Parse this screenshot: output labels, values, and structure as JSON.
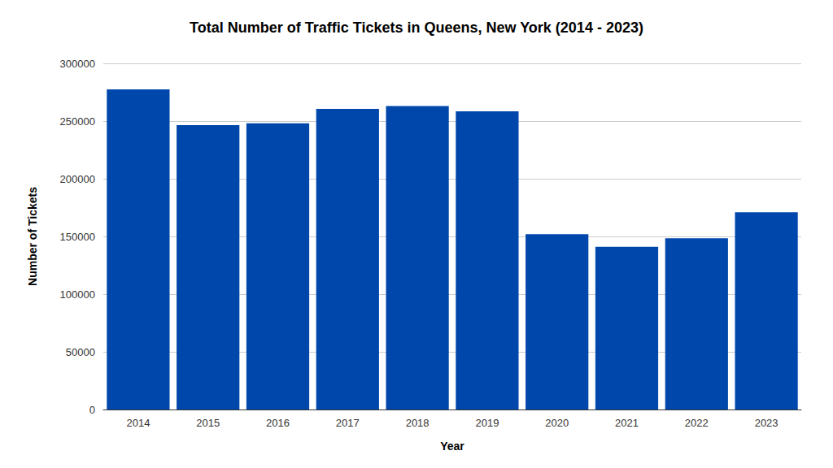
{
  "chart_data": {
    "type": "bar",
    "title": "Total Number of Traffic Tickets in Queens, New York (2014 - 2023)",
    "x_label": "Year",
    "y_label": "Number of Tickets",
    "categories": [
      "2014",
      "2015",
      "2016",
      "2017",
      "2018",
      "2019",
      "2020",
      "2021",
      "2022",
      "2023"
    ],
    "values": [
      277500,
      246500,
      248000,
      260500,
      263000,
      258500,
      152000,
      141000,
      148500,
      171000
    ],
    "color": "#0047ab",
    "ylim": [
      0,
      300000
    ],
    "yticks": [
      0,
      50000,
      100000,
      150000,
      200000,
      250000,
      300000
    ],
    "grid": true
  }
}
